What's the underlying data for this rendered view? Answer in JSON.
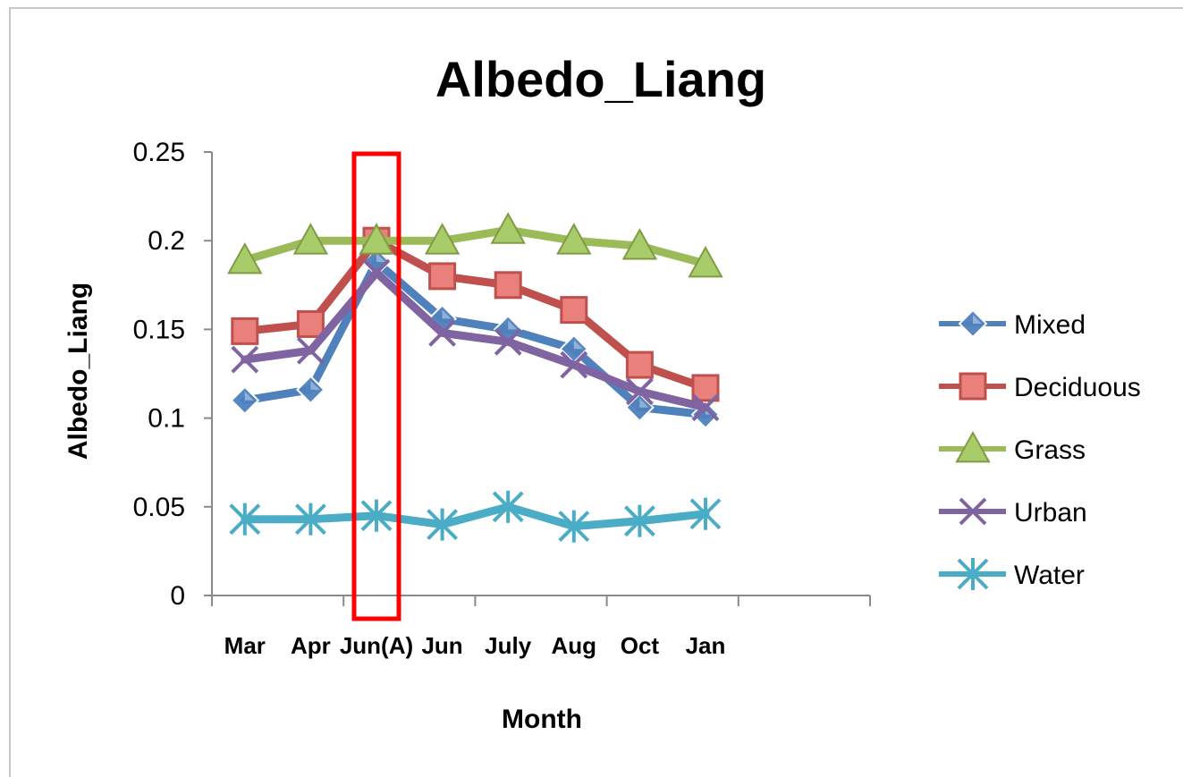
{
  "chart_data": {
    "type": "line",
    "title": "Albedo_Liang",
    "xlabel": "Month",
    "ylabel": "Albedo_Liang",
    "categories": [
      "Mar",
      "Apr",
      "Jun(A)",
      "Jun",
      "July",
      "Aug",
      "Oct",
      "Jan"
    ],
    "ylim": [
      0,
      0.25
    ],
    "yticks": [
      "0",
      "0.05",
      "0.1",
      "0.15",
      "0.2",
      "0.25"
    ],
    "grid": false,
    "legend_position": "right",
    "series": [
      {
        "name": "Mixed",
        "color": "#4F81BD",
        "marker": "diamond",
        "values": [
          0.11,
          0.116,
          0.188,
          0.156,
          0.15,
          0.139,
          0.106,
          0.102
        ]
      },
      {
        "name": "Deciduous",
        "color": "#C0504D",
        "marker": "square",
        "values": [
          0.149,
          0.153,
          0.2,
          0.18,
          0.175,
          0.161,
          0.13,
          0.117
        ]
      },
      {
        "name": "Grass",
        "color": "#9BBB59",
        "marker": "triangle",
        "values": [
          0.189,
          0.2,
          0.2,
          0.2,
          0.206,
          0.2,
          0.197,
          0.187
        ]
      },
      {
        "name": "Urban",
        "color": "#8064A2",
        "marker": "x",
        "values": [
          0.133,
          0.138,
          0.182,
          0.148,
          0.143,
          0.13,
          0.115,
          0.106
        ]
      },
      {
        "name": "Water",
        "color": "#4BACC6",
        "marker": "star",
        "values": [
          0.043,
          0.043,
          0.045,
          0.04,
          0.05,
          0.039,
          0.042,
          0.046
        ]
      }
    ],
    "highlight": {
      "category": "Jun(A)",
      "color": "#FF0000"
    }
  }
}
